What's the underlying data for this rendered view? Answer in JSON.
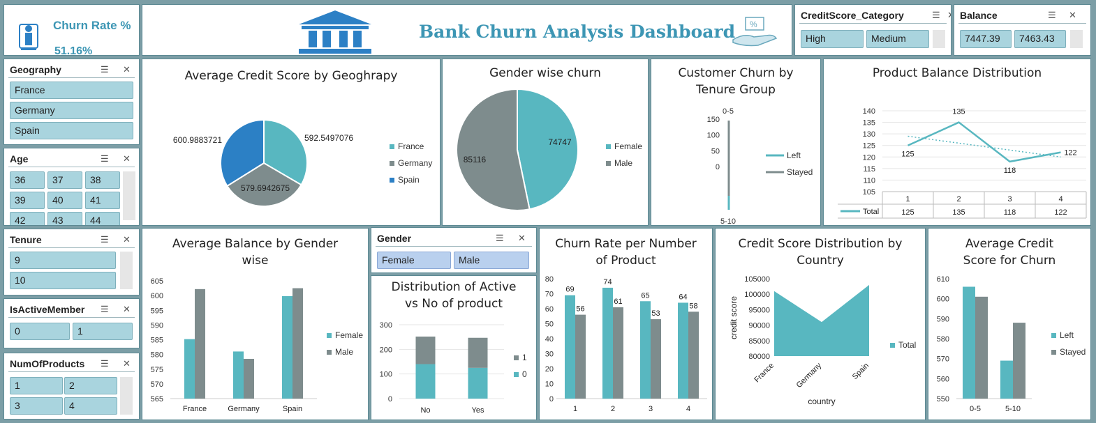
{
  "kpi": {
    "title": "Churn Rate %",
    "value": "51.16%"
  },
  "header": {
    "title": "Bank Churn Analysis Dashboard"
  },
  "slicers": {
    "credit": {
      "label": "CreditScore_Category",
      "items": [
        "High",
        "Medium"
      ]
    },
    "balance": {
      "label": "Balance",
      "items": [
        "7447.39",
        "7463.43"
      ]
    },
    "geography": {
      "label": "Geography",
      "items": [
        "France",
        "Germany",
        "Spain"
      ]
    },
    "age": {
      "label": "Age",
      "items": [
        "36",
        "37",
        "38",
        "39",
        "40",
        "41",
        "42",
        "43",
        "44"
      ]
    },
    "tenure": {
      "label": "Tenure",
      "items": [
        "9",
        "10"
      ]
    },
    "active": {
      "label": "IsActiveMember",
      "items": [
        "0",
        "1"
      ]
    },
    "products": {
      "label": "NumOfProducts",
      "items": [
        "1",
        "2",
        "3",
        "4"
      ]
    },
    "gender": {
      "label": "Gender",
      "items": [
        "Female",
        "Male"
      ]
    }
  },
  "colors": {
    "teal": "#58b7c0",
    "gray": "#7e8c8d",
    "blue": "#2c80c5",
    "title": "#3d96b4"
  },
  "chart_data": [
    {
      "type": "pie",
      "title": "Average Credit Score by Geoghrapy",
      "labels": [
        "France",
        "Germany",
        "Spain"
      ],
      "values": [
        592.5497076,
        579.6942675,
        600.9883721
      ],
      "data_labels": [
        "592.5497076",
        "579.6942675",
        "600.9883721"
      ]
    },
    {
      "type": "pie",
      "title": "Gender wise churn",
      "labels": [
        "Female",
        "Male"
      ],
      "values": [
        74747,
        85116
      ],
      "data_labels": [
        "74747",
        "85116"
      ]
    },
    {
      "type": "line",
      "title": "Customer Churn by Tenure Group",
      "y_ticks": [
        "150",
        "100",
        "50",
        "0"
      ],
      "x_ticks": [
        "0-5",
        "5-10"
      ],
      "series": [
        {
          "name": "Left"
        },
        {
          "name": "Stayed"
        }
      ]
    },
    {
      "type": "line",
      "title": "Product Balance Distribution",
      "categories": [
        "1",
        "2",
        "3",
        "4"
      ],
      "series": [
        {
          "name": "Total",
          "values": [
            125,
            135,
            118,
            122
          ]
        }
      ],
      "y_ticks": [
        "140",
        "135",
        "130",
        "125",
        "120",
        "115",
        "110",
        "105"
      ],
      "ylim": [
        105,
        140
      ],
      "data_labels": [
        "125",
        "135",
        "118",
        "122"
      ],
      "trendline": true
    },
    {
      "type": "bar",
      "title": "Average Balance by Gender wise",
      "categories": [
        "France",
        "Germany",
        "Spain"
      ],
      "series": [
        {
          "name": "Female",
          "values": [
            585.2,
            581.0,
            599.8
          ]
        },
        {
          "name": "Male",
          "values": [
            602.2,
            578.5,
            602.5
          ]
        }
      ],
      "y_ticks": [
        "605",
        "600",
        "595",
        "590",
        "585",
        "580",
        "575",
        "570",
        "565"
      ],
      "ylim": [
        565,
        605
      ]
    },
    {
      "type": "bar",
      "title": "Distribution of Active vs No of product",
      "categories": [
        "No",
        "Yes"
      ],
      "series": [
        {
          "name": "0",
          "values": [
            140,
            125
          ]
        },
        {
          "name": "1",
          "values": [
            112,
            122
          ]
        }
      ],
      "y_ticks": [
        "300",
        "200",
        "100",
        "0"
      ],
      "ylim": [
        0,
        300
      ],
      "stacked": true
    },
    {
      "type": "bar",
      "title": "Churn Rate per Number of Product",
      "categories": [
        "1",
        "2",
        "3",
        "4"
      ],
      "series": [
        {
          "values": [
            69,
            74,
            65,
            64
          ]
        },
        {
          "values": [
            56,
            61,
            53,
            58
          ]
        }
      ],
      "y_ticks": [
        "80",
        "70",
        "60",
        "50",
        "40",
        "30",
        "20",
        "10",
        "0"
      ],
      "ylim": [
        0,
        80
      ],
      "data_labels": [
        [
          "69",
          "74",
          "65",
          "64"
        ],
        [
          "56",
          "61",
          "53",
          "58"
        ]
      ]
    },
    {
      "type": "area",
      "title": "Credit Score Distribution by Country",
      "categories": [
        "France",
        "Germany",
        "Spain"
      ],
      "series": [
        {
          "name": "Total",
          "values": [
            101000,
            91000,
            103000
          ]
        }
      ],
      "y_ticks": [
        "105000",
        "100000",
        "95000",
        "90000",
        "85000",
        "80000"
      ],
      "ylim": [
        80000,
        105000
      ],
      "xlabel": "country",
      "ylabel": "credit score"
    },
    {
      "type": "bar",
      "title": "Average Credit Score for Churn",
      "categories": [
        "0-5",
        "5-10"
      ],
      "series": [
        {
          "name": "Left",
          "values": [
            606,
            569
          ]
        },
        {
          "name": "Stayed",
          "values": [
            601,
            588
          ]
        }
      ],
      "y_ticks": [
        "610",
        "600",
        "590",
        "580",
        "570",
        "560",
        "550"
      ],
      "ylim": [
        550,
        610
      ]
    }
  ]
}
